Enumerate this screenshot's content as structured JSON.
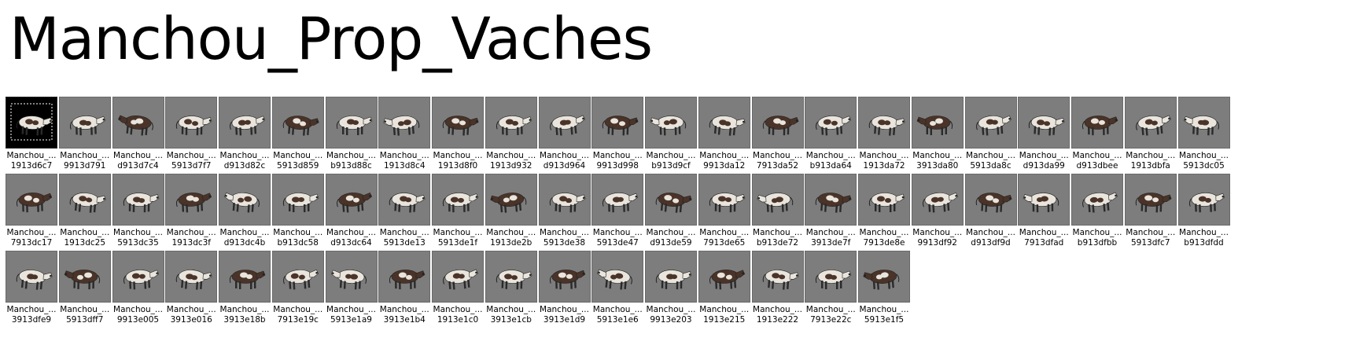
{
  "page": {
    "title": "Manchou_Prop_Vaches"
  },
  "cells": [
    {
      "name": "Manchou_...",
      "hash": "1913d6c7"
    },
    {
      "name": "Manchou_...",
      "hash": "9913d791"
    },
    {
      "name": "Manchou_...",
      "hash": "d913d7c4"
    },
    {
      "name": "Manchou_...",
      "hash": "5913d7f7"
    },
    {
      "name": "Manchou_...",
      "hash": "d913d82c"
    },
    {
      "name": "Manchou_...",
      "hash": "5913d859"
    },
    {
      "name": "Manchou_...",
      "hash": "b913d88c"
    },
    {
      "name": "Manchou_...",
      "hash": "1913d8c4"
    },
    {
      "name": "Manchou_...",
      "hash": "1913d8f0"
    },
    {
      "name": "Manchou_...",
      "hash": "1913d932"
    },
    {
      "name": "Manchou_...",
      "hash": "d913d964"
    },
    {
      "name": "Manchou_...",
      "hash": "9913d998"
    },
    {
      "name": "Manchou_...",
      "hash": "b913d9cf"
    },
    {
      "name": "Manchou_...",
      "hash": "9913da12"
    },
    {
      "name": "Manchou_...",
      "hash": "7913da52"
    },
    {
      "name": "Manchou_...",
      "hash": "b913da64"
    },
    {
      "name": "Manchou_...",
      "hash": "1913da72"
    },
    {
      "name": "Manchou_...",
      "hash": "3913da80"
    },
    {
      "name": "Manchou_...",
      "hash": "5913da8c"
    },
    {
      "name": "Manchou_...",
      "hash": "d913da99"
    },
    {
      "name": "Manchou_...",
      "hash": "d913dbee"
    },
    {
      "name": "Manchou_...",
      "hash": "1913dbfa"
    },
    {
      "name": "Manchou_...",
      "hash": "5913dc05"
    },
    {
      "name": "Manchou_...",
      "hash": "7913dc17"
    },
    {
      "name": "Manchou_...",
      "hash": "1913dc25"
    },
    {
      "name": "Manchou_...",
      "hash": "5913dc35"
    },
    {
      "name": "Manchou_...",
      "hash": "1913dc3f"
    },
    {
      "name": "Manchou_...",
      "hash": "d913dc4b"
    },
    {
      "name": "Manchou_...",
      "hash": "b913dc58"
    },
    {
      "name": "Manchou_...",
      "hash": "d913dc64"
    },
    {
      "name": "Manchou_...",
      "hash": "5913de13"
    },
    {
      "name": "Manchou_...",
      "hash": "5913de1f"
    },
    {
      "name": "Manchou_...",
      "hash": "1913de2b"
    },
    {
      "name": "Manchou_...",
      "hash": "5913de38"
    },
    {
      "name": "Manchou_...",
      "hash": "5913de47"
    },
    {
      "name": "Manchou_...",
      "hash": "d913de59"
    },
    {
      "name": "Manchou_...",
      "hash": "7913de65"
    },
    {
      "name": "Manchou_...",
      "hash": "b913de72"
    },
    {
      "name": "Manchou_...",
      "hash": "3913de7f"
    },
    {
      "name": "Manchou_...",
      "hash": "7913de8e"
    },
    {
      "name": "Manchou_...",
      "hash": "9913df92"
    },
    {
      "name": "Manchou_...",
      "hash": "d913df9d"
    },
    {
      "name": "Manchou_...",
      "hash": "7913dfad"
    },
    {
      "name": "Manchou_...",
      "hash": "b913dfbb"
    },
    {
      "name": "Manchou_...",
      "hash": "5913dfc7"
    },
    {
      "name": "Manchou_...",
      "hash": "b913dfdd"
    },
    {
      "name": "Manchou_...",
      "hash": "3913dfe9"
    },
    {
      "name": "Manchou_...",
      "hash": "5913dff7"
    },
    {
      "name": "Manchou_...",
      "hash": "9913e005"
    },
    {
      "name": "Manchou_...",
      "hash": "3913e016"
    },
    {
      "name": "Manchou_...",
      "hash": "3913e18b"
    },
    {
      "name": "Manchou_...",
      "hash": "7913e19c"
    },
    {
      "name": "Manchou_...",
      "hash": "5913e1a9"
    },
    {
      "name": "Manchou_...",
      "hash": "3913e1b4"
    },
    {
      "name": "Manchou_...",
      "hash": "1913e1c0"
    },
    {
      "name": "Manchou_...",
      "hash": "3913e1cb"
    },
    {
      "name": "Manchou_...",
      "hash": "3913e1d9"
    },
    {
      "name": "Manchou_...",
      "hash": "5913e1e6"
    },
    {
      "name": "Manchou_...",
      "hash": "9913e203"
    },
    {
      "name": "Manchou_...",
      "hash": "1913e215"
    },
    {
      "name": "Manchou_...",
      "hash": "1913e222"
    },
    {
      "name": "Manchou_...",
      "hash": "7913e22c"
    },
    {
      "name": "Manchou_...",
      "hash": "5913e1f5"
    }
  ],
  "selected_hash": "1913d6c7",
  "icon": "cow-thumbnail-icon",
  "colors": {
    "thumb_bg": "#7d7d7d",
    "selected_bg": "#000000",
    "cow_white": "#e9e4dc",
    "cow_brown": "#4a3328"
  }
}
